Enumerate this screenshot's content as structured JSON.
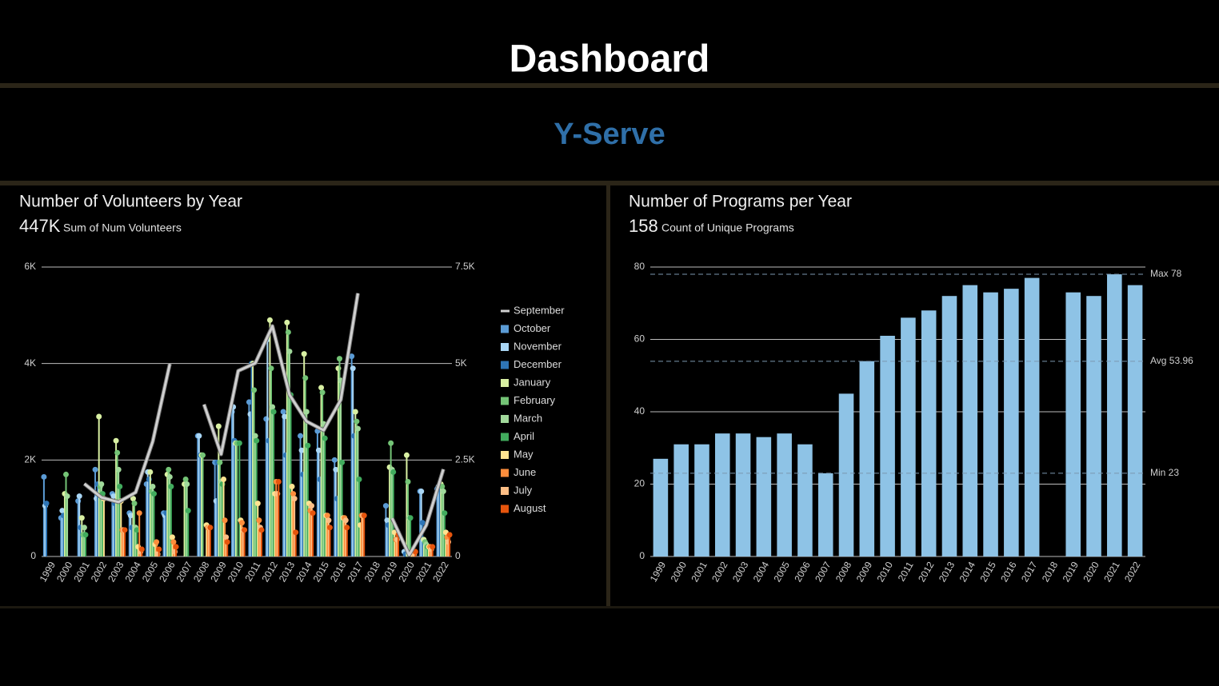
{
  "header": {
    "title": "Dashboard",
    "subtitle": "Y-Serve"
  },
  "chart_data": [
    {
      "type": "lollipop",
      "title": "Number of Volunteers by Year",
      "kpi_value": "447K",
      "kpi_label": "Sum of Num Volunteers",
      "categories": [
        "1999",
        "2000",
        "2001",
        "2002",
        "2003",
        "2004",
        "2005",
        "2006",
        "2007",
        "2008",
        "2009",
        "2010",
        "2011",
        "2012",
        "2013",
        "2014",
        "2015",
        "2016",
        "2017",
        "2018",
        "2019",
        "2020",
        "2021",
        "2022"
      ],
      "ylim": [
        0,
        6000
      ],
      "yticks": [
        0,
        {
          "value": 2000,
          "label": "2K"
        },
        {
          "value": 4000,
          "label": "4K"
        },
        {
          "value": 6000,
          "label": "6K"
        }
      ],
      "y2lim": [
        0,
        7500
      ],
      "y2ticks": [
        0,
        {
          "value": 2500,
          "label": "2.5K"
        },
        {
          "value": 5000,
          "label": "5K"
        },
        {
          "value": 7500,
          "label": "7.5K"
        }
      ],
      "grid": true,
      "legend": "right",
      "series": [
        {
          "name": "September",
          "type": "line",
          "axis": "y2",
          "color": "#d0d0d0",
          "values": [
            null,
            null,
            1885,
            1530,
            1410,
            1660,
            2980,
            4990,
            null,
            3940,
            2650,
            4810,
            5010,
            5970,
            4190,
            3500,
            3270,
            4060,
            6820,
            null,
            990,
            40,
            810,
            2260
          ]
        },
        {
          "name": "October",
          "color": "#5b9bd5",
          "values": [
            1650,
            800,
            1150,
            1800,
            1300,
            900,
            1500,
            900,
            null,
            2500,
            1950,
            3000,
            3200,
            2850,
            3000,
            2500,
            2600,
            2000,
            4150,
            null,
            1050,
            null,
            1350,
            1400
          ]
        },
        {
          "name": "November",
          "color": "#a9d6f5",
          "values": [
            1050,
            950,
            1250,
            1200,
            1250,
            850,
            1750,
            850,
            null,
            2500,
            1150,
            3100,
            2950,
            4500,
            2900,
            2200,
            2200,
            1800,
            3900,
            null,
            750,
            100,
            1350,
            1450
          ]
        },
        {
          "name": "December",
          "color": "#2e75b6",
          "values": [
            1100,
            850,
            600,
            1500,
            1100,
            600,
            1600,
            900,
            null,
            2100,
            1950,
            2400,
            4000,
            2400,
            2100,
            1700,
            1600,
            1200,
            2500,
            null,
            650,
            50,
            700,
            1450
          ]
        },
        {
          "name": "January",
          "color": "#d9f0a3",
          "values": [
            null,
            1300,
            800,
            2900,
            2400,
            1200,
            1750,
            1700,
            1500,
            2100,
            2700,
            2350,
            4000,
            4900,
            4850,
            4200,
            3500,
            3900,
            3000,
            null,
            1850,
            2100,
            350,
            1500
          ]
        },
        {
          "name": "February",
          "color": "#74c476",
          "values": [
            null,
            1700,
            450,
            1450,
            2150,
            1100,
            1350,
            1800,
            1600,
            2100,
            1950,
            2350,
            3450,
            3900,
            4650,
            3700,
            3400,
            4100,
            2800,
            null,
            2350,
            1550,
            300,
            1450
          ]
        },
        {
          "name": "March",
          "color": "#a1d99b",
          "values": [
            null,
            1250,
            600,
            1500,
            1800,
            600,
            1450,
            1650,
            1500,
            null,
            1550,
            null,
            2500,
            3100,
            4250,
            3000,
            2750,
            3650,
            2650,
            null,
            1800,
            800,
            250,
            1350
          ]
        },
        {
          "name": "April",
          "color": "#41ab5d",
          "values": [
            null,
            null,
            450,
            1300,
            1450,
            550,
            1300,
            1450,
            950,
            null,
            1500,
            2350,
            2400,
            3000,
            3350,
            2300,
            2450,
            1950,
            1600,
            null,
            1750,
            800,
            200,
            900
          ]
        },
        {
          "name": "May",
          "color": "#fee391",
          "values": [
            null,
            null,
            null,
            1200,
            1150,
            200,
            250,
            400,
            null,
            650,
            1600,
            750,
            1100,
            1300,
            1450,
            1100,
            850,
            800,
            650,
            null,
            500,
            50,
            200,
            500
          ]
        },
        {
          "name": "June",
          "color": "#fd8d3c",
          "values": [
            null,
            null,
            null,
            null,
            550,
            900,
            300,
            300,
            null,
            600,
            750,
            700,
            750,
            1550,
            1300,
            950,
            850,
            800,
            850,
            null,
            350,
            100,
            200,
            400
          ]
        },
        {
          "name": "July",
          "color": "#fdbe85",
          "values": [
            null,
            null,
            null,
            null,
            550,
            100,
            50,
            100,
            null,
            600,
            400,
            550,
            600,
            1300,
            1200,
            1050,
            750,
            750,
            850,
            null,
            350,
            50,
            150,
            300
          ]
        },
        {
          "name": "August",
          "color": "#e6550d",
          "values": [
            null,
            null,
            null,
            null,
            550,
            150,
            150,
            200,
            null,
            600,
            300,
            550,
            550,
            1550,
            500,
            900,
            600,
            600,
            850,
            null,
            450,
            100,
            200,
            450
          ]
        }
      ]
    },
    {
      "type": "bar",
      "title": "Number of Programs per Year",
      "kpi_value": "158",
      "kpi_label": "Count of Unique Programs",
      "categories": [
        "1999",
        "2000",
        "2001",
        "2002",
        "2003",
        "2004",
        "2005",
        "2006",
        "2007",
        "2008",
        "2009",
        "2010",
        "2011",
        "2012",
        "2013",
        "2014",
        "2015",
        "2016",
        "2017",
        "2018",
        "2019",
        "2020",
        "2021",
        "2022"
      ],
      "values": [
        27,
        31,
        31,
        34,
        34,
        33,
        34,
        31,
        23,
        45,
        54,
        61,
        66,
        68,
        72,
        75,
        73,
        74,
        77,
        null,
        73,
        72,
        78,
        75
      ],
      "color": "#8ec3e6",
      "ylim": [
        0,
        80
      ],
      "yticks": [
        0,
        20,
        40,
        60,
        80
      ],
      "grid": true,
      "reference_lines": [
        {
          "label": "Max 78",
          "value": 78
        },
        {
          "label": "Avg 53.96",
          "value": 53.96
        },
        {
          "label": "Min 23",
          "value": 23
        }
      ]
    }
  ]
}
